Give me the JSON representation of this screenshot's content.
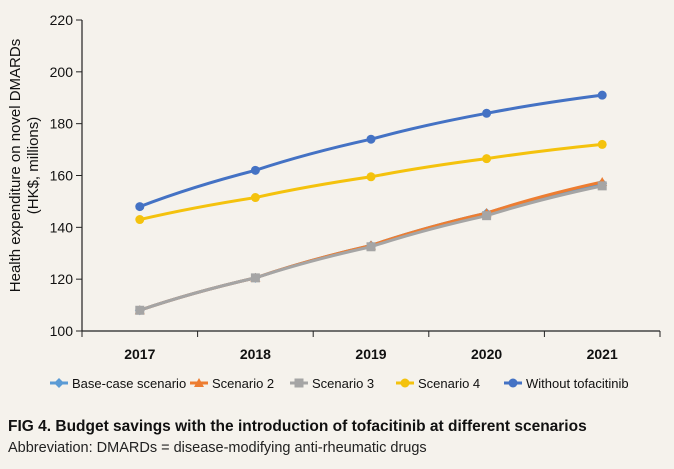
{
  "chart_data": {
    "type": "line",
    "title": "",
    "ylabel_lines": [
      "Health expenditure on novel DMARDs",
      "(HK$, millions)"
    ],
    "xlabel": "",
    "x": [
      "2017",
      "2018",
      "2019",
      "2020",
      "2021"
    ],
    "ylim": [
      100,
      220
    ],
    "yticks": [
      "100",
      "120",
      "140",
      "160",
      "180",
      "200",
      "220"
    ],
    "grid": false,
    "legend_position": "bottom",
    "series": [
      {
        "name": "Base-case scenario",
        "values": [
          108,
          120.5,
          133,
          145.5,
          157
        ],
        "color": "#5b9bd5",
        "marker": "diamond"
      },
      {
        "name": "Scenario 2",
        "values": [
          108,
          120.5,
          133,
          145.5,
          157.5
        ],
        "color": "#ed7d31",
        "marker": "triangle"
      },
      {
        "name": "Scenario 3",
        "values": [
          108,
          120.5,
          132.5,
          144.5,
          156
        ],
        "color": "#a5a5a5",
        "marker": "square"
      },
      {
        "name": "Scenario 4",
        "values": [
          143,
          151.5,
          159.5,
          166.5,
          172
        ],
        "color": "#f4c20d",
        "marker": "circle"
      },
      {
        "name": "Without tofacitinib",
        "values": [
          148,
          162,
          174,
          184,
          191
        ],
        "color": "#4472c4",
        "marker": "circle"
      }
    ]
  },
  "caption": {
    "title": "FIG 4. Budget savings with the introduction of tofacitinib at different scenarios",
    "note": "Abbreviation: DMARDs = disease-modifying anti-rheumatic drugs"
  }
}
